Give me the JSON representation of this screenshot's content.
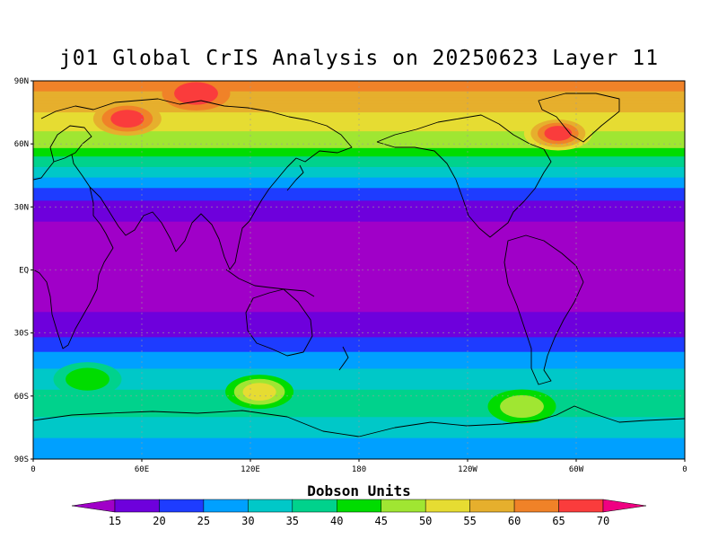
{
  "title": "j01 Global CrIS Analysis on 20250623 Layer 11",
  "map": {
    "lat_labels": [
      "90N",
      "60N",
      "30N",
      "EQ",
      "30S",
      "60S",
      "90S"
    ],
    "lon_labels": [
      "0",
      "60E",
      "120E",
      "180",
      "120W",
      "60W",
      "0"
    ],
    "grid": true
  },
  "colorbar": {
    "title": "Dobson Units",
    "levels": [
      "15",
      "20",
      "25",
      "30",
      "35",
      "40",
      "45",
      "50",
      "55",
      "60",
      "65",
      "70"
    ],
    "colors": [
      "#a000c8",
      "#6e00dc",
      "#1e3cff",
      "#00a0ff",
      "#00c8c8",
      "#00d28c",
      "#00dc00",
      "#a0e632",
      "#e6dc32",
      "#e6af2d",
      "#f08228",
      "#fa3c3c",
      "#f00082"
    ]
  },
  "chart_data": {
    "type": "heatmap",
    "title": "j01 Global CrIS Analysis on 20250623 Layer 11",
    "x_ticks": [
      "0",
      "60E",
      "120E",
      "180",
      "120W",
      "60W",
      "0"
    ],
    "y_ticks": [
      "90N",
      "60N",
      "30N",
      "EQ",
      "30S",
      "60S",
      "90S"
    ],
    "colorbar_label": "Dobson Units",
    "zonal_profile": {
      "latitude": [
        90,
        80,
        70,
        60,
        50,
        40,
        30,
        20,
        10,
        0,
        -10,
        -20,
        -30,
        -40,
        -50,
        -60,
        -70,
        -80,
        -90
      ],
      "value": [
        62,
        58,
        52,
        47,
        36,
        26,
        17,
        14,
        14,
        14,
        14,
        15,
        18,
        26,
        32,
        36,
        35,
        30,
        28
      ]
    },
    "features": [
      {
        "lat": 72,
        "lon": 52,
        "value": 68
      },
      {
        "lat": 65,
        "lon": 290,
        "value": 68
      },
      {
        "lat": 84,
        "lon": 90,
        "value": 66
      },
      {
        "lat": -58,
        "lon": 125,
        "value": 52
      },
      {
        "lat": -65,
        "lon": 270,
        "value": 45
      },
      {
        "lat": -52,
        "lon": 30,
        "value": 42
      }
    ]
  }
}
